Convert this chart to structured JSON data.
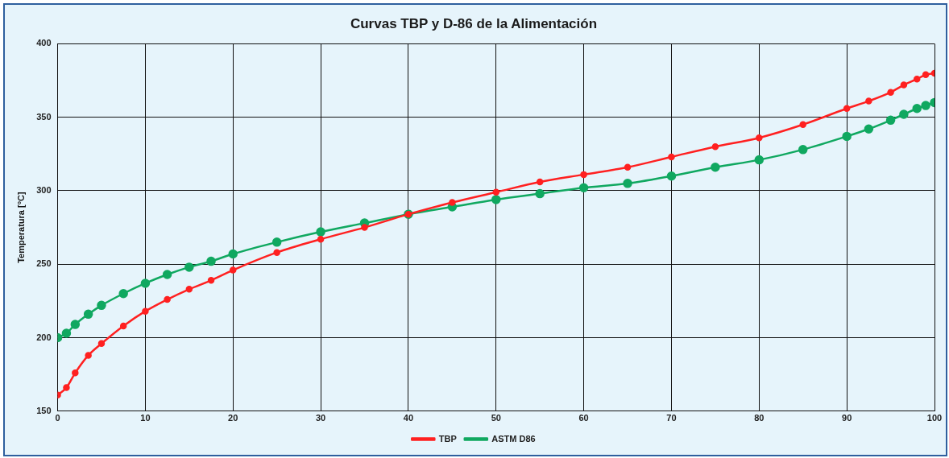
{
  "chart_data": {
    "type": "line",
    "title": "Curvas TBP y D-86 de la Alimentación",
    "ylabel": "Temperatura [°C]",
    "x": [
      0,
      1,
      2,
      3.5,
      5,
      7.5,
      10,
      12.5,
      15,
      17.5,
      20,
      25,
      30,
      35,
      40,
      45,
      50,
      55,
      60,
      65,
      70,
      75,
      80,
      85,
      90,
      92.5,
      95,
      96.5,
      98,
      99,
      100
    ],
    "series": [
      {
        "name": "TBP",
        "color": "#ff2020",
        "values": [
          161,
          166,
          176,
          188,
          196,
          208,
          218,
          226,
          233,
          239,
          246,
          258,
          267,
          275,
          284,
          292,
          299,
          306,
          311,
          316,
          323,
          330,
          336,
          345,
          356,
          361,
          367,
          372,
          376,
          379,
          380
        ]
      },
      {
        "name": "ASTM D86",
        "color": "#10a860",
        "values": [
          200,
          203,
          209,
          216,
          222,
          230,
          237,
          243,
          248,
          252,
          257,
          265,
          272,
          278,
          284,
          289,
          294,
          298,
          302,
          305,
          310,
          316,
          321,
          328,
          337,
          342,
          348,
          352,
          356,
          358,
          360
        ]
      }
    ],
    "xlim": [
      0,
      100
    ],
    "xticks": [
      0,
      10,
      20,
      30,
      40,
      50,
      60,
      70,
      80,
      90,
      100
    ],
    "ylim": [
      150,
      400
    ],
    "yticks": [
      150,
      200,
      250,
      300,
      350,
      400
    ],
    "grid": true,
    "legend": "bottom",
    "marker": "circle",
    "line_style": "solid"
  }
}
